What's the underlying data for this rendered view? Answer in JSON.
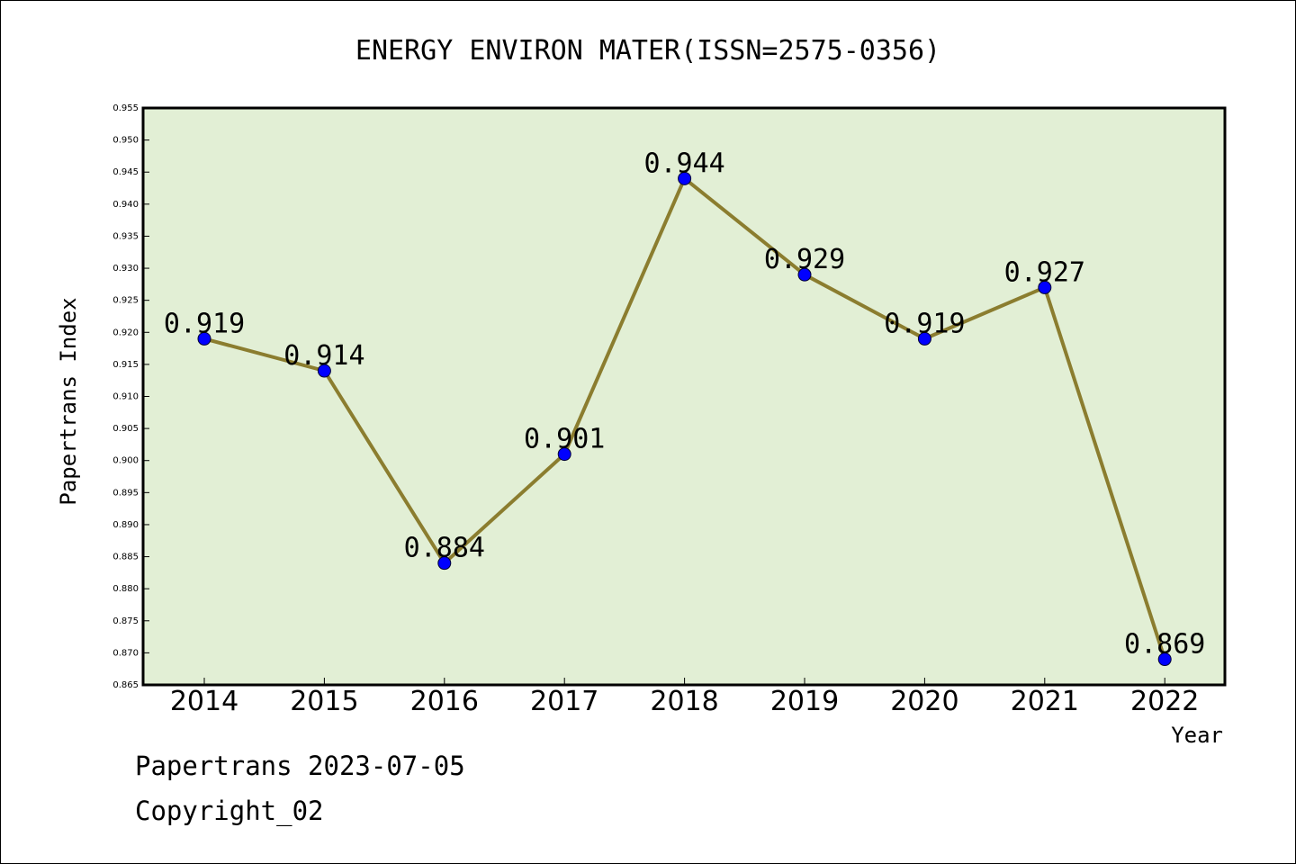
{
  "chart_data": {
    "type": "line",
    "title": "ENERGY ENVIRON MATER(ISSN=2575-0356)",
    "xlabel": "Year",
    "ylabel": "Papertrans Index",
    "categories": [
      "2014",
      "2015",
      "2016",
      "2017",
      "2018",
      "2019",
      "2020",
      "2021",
      "2022"
    ],
    "series": [
      {
        "values": [
          0.919,
          0.914,
          0.884,
          0.901,
          0.944,
          0.929,
          0.919,
          0.927,
          0.869
        ]
      }
    ],
    "data_labels": [
      "0.919",
      "0.914",
      "0.884",
      "0.901",
      "0.944",
      "0.929",
      "0.919",
      "0.927",
      "0.869"
    ],
    "ylim": [
      0.865,
      0.955
    ],
    "yticks": [
      "0.865",
      "0.870",
      "0.875",
      "0.880",
      "0.885",
      "0.890",
      "0.895",
      "0.900",
      "0.905",
      "0.910",
      "0.915",
      "0.920",
      "0.925",
      "0.930",
      "0.935",
      "0.940",
      "0.945",
      "0.950",
      "0.955"
    ],
    "grid": false,
    "colors": {
      "plot_background": "#e2efd5",
      "line": "#8b7d2f",
      "marker": "#0000ff"
    }
  },
  "footer": {
    "date_line": "Papertrans 2023-07-05",
    "copyright": "Copyright_02"
  }
}
